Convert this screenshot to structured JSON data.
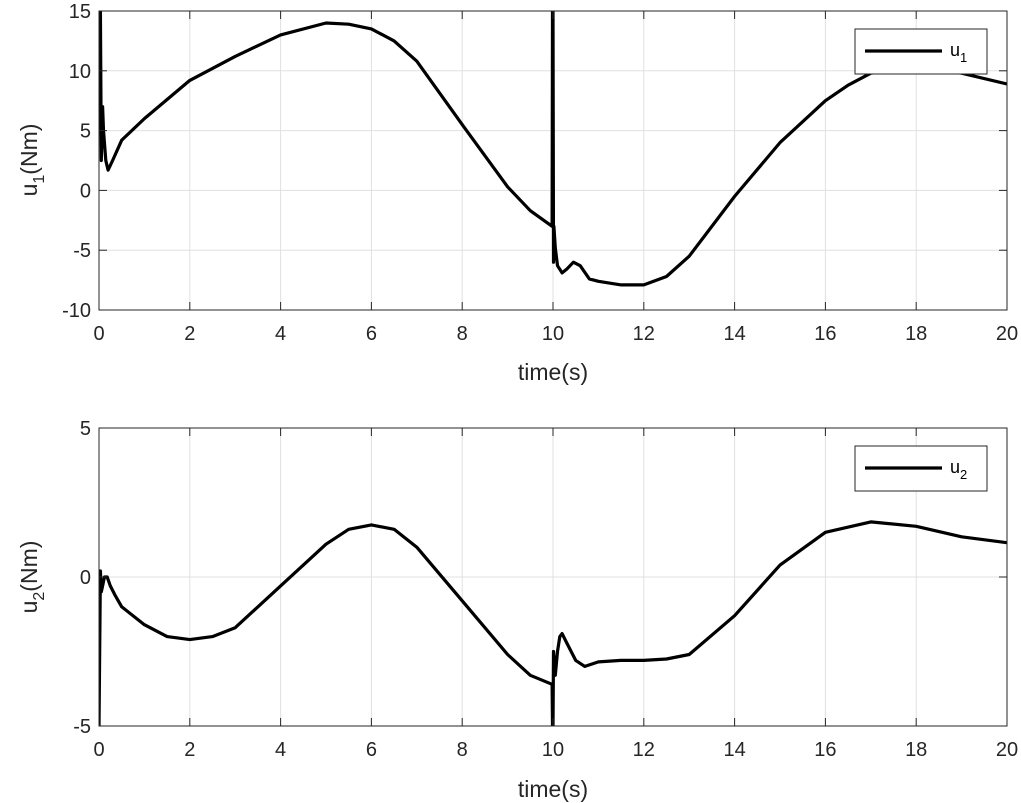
{
  "chart_data": [
    {
      "type": "line",
      "id": "top",
      "xlabel": "time(s)",
      "ylabel_main": "u",
      "ylabel_sub": "1",
      "ylabel_tail": "(Nm)",
      "xlim": [
        0,
        20
      ],
      "ylim": [
        -10,
        15
      ],
      "xticks": [
        "0",
        "2",
        "4",
        "6",
        "8",
        "10",
        "12",
        "14",
        "16",
        "18",
        "20"
      ],
      "yticks": [
        "-10",
        "-5",
        "0",
        "5",
        "10",
        "15"
      ],
      "grid": true,
      "legend_position": "top-right",
      "series": [
        {
          "name_main": "u",
          "name_sub": "1",
          "color": "#000000",
          "x": [
            0,
            0.03,
            0.05,
            0.08,
            0.1,
            0.15,
            0.2,
            0.3,
            0.5,
            1,
            2,
            3,
            4,
            5,
            5.5,
            6,
            6.5,
            7,
            8,
            9,
            9.5,
            9.98,
            9.99,
            10,
            10.01,
            10.02,
            10.05,
            10.1,
            10.2,
            10.3,
            10.45,
            10.6,
            10.8,
            11,
            11.5,
            12,
            12.5,
            13,
            14,
            15,
            16,
            16.5,
            17,
            18,
            19,
            20
          ],
          "y": [
            15,
            15,
            2.5,
            7,
            5,
            2.5,
            1.7,
            2.5,
            4.2,
            6,
            9.2,
            11.2,
            13,
            14,
            13.9,
            13.5,
            12.5,
            10.8,
            5.5,
            0.3,
            -1.7,
            -3,
            15,
            15,
            -6,
            -3,
            -4.8,
            -6.3,
            -6.9,
            -6.6,
            -6,
            -6.3,
            -7.4,
            -7.6,
            -7.9,
            -7.9,
            -7.2,
            -5.5,
            -0.5,
            4,
            7.5,
            8.8,
            9.8,
            10.2,
            9.8,
            8.9
          ]
        }
      ]
    },
    {
      "type": "line",
      "id": "bottom",
      "xlabel": "time(s)",
      "ylabel_main": "u",
      "ylabel_sub": "2",
      "ylabel_tail": "(Nm)",
      "xlim": [
        0,
        20
      ],
      "ylim": [
        -5,
        5
      ],
      "xticks": [
        "0",
        "2",
        "4",
        "6",
        "8",
        "10",
        "12",
        "14",
        "16",
        "18",
        "20"
      ],
      "yticks": [
        "-5",
        "0",
        "5"
      ],
      "grid": true,
      "legend_position": "top-right",
      "series": [
        {
          "name_main": "u",
          "name_sub": "2",
          "color": "#000000",
          "x": [
            0,
            0.03,
            0.05,
            0.08,
            0.12,
            0.18,
            0.25,
            0.35,
            0.5,
            1,
            1.5,
            2,
            2.5,
            3,
            4,
            5,
            5.5,
            6,
            6.5,
            7,
            8,
            9,
            9.5,
            9.98,
            9.99,
            10,
            10.01,
            10.05,
            10.1,
            10.15,
            10.2,
            10.3,
            10.5,
            10.7,
            11,
            11.5,
            12,
            12.5,
            13,
            14,
            15,
            16,
            17,
            18,
            19,
            20
          ],
          "y": [
            -5,
            0.2,
            -0.5,
            -0.3,
            0,
            0,
            -0.3,
            -0.6,
            -1,
            -1.6,
            -2,
            -2.1,
            -2,
            -1.7,
            -0.3,
            1.1,
            1.6,
            1.75,
            1.6,
            1,
            -0.8,
            -2.6,
            -3.3,
            -3.6,
            -5,
            -5,
            -2.5,
            -3.3,
            -2.5,
            -2,
            -1.9,
            -2.2,
            -2.8,
            -3,
            -2.85,
            -2.8,
            -2.8,
            -2.75,
            -2.6,
            -1.3,
            0.4,
            1.5,
            1.85,
            1.7,
            1.35,
            1.15
          ]
        }
      ]
    }
  ]
}
